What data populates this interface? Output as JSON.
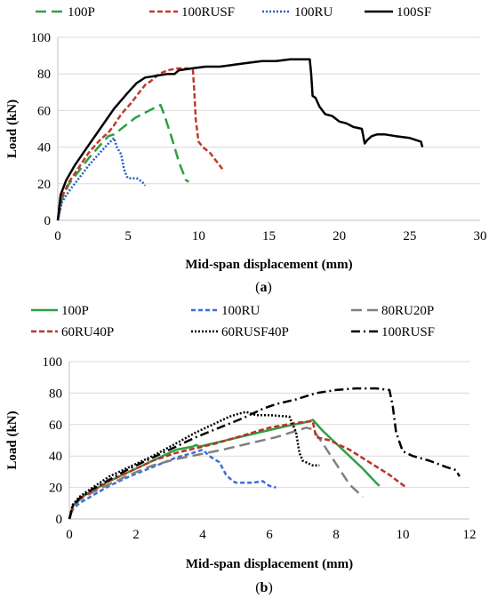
{
  "chart_data": [
    {
      "panel": "a",
      "caption": {
        "open": "(",
        "letter": "a",
        "close": ")"
      },
      "type": "line",
      "xlabel": "Mid-span displacement (mm)",
      "ylabel": "Load (kN)",
      "xlim": [
        0,
        30
      ],
      "ylim": [
        0,
        100
      ],
      "xticks": [
        0,
        5,
        10,
        15,
        20,
        25,
        30
      ],
      "yticks": [
        0,
        20,
        40,
        60,
        80,
        100
      ],
      "grid": "horizontal",
      "legend_position": "top",
      "series": [
        {
          "name": "100P",
          "color": "#2ea043",
          "dash": "long-dash",
          "x": [
            0,
            0.3,
            0.8,
            1.5,
            2.2,
            3.0,
            3.6,
            4.0,
            4.5,
            5.5,
            6.5,
            7.0,
            7.3,
            7.6,
            8.1,
            8.6,
            9.1,
            9.3
          ],
          "y": [
            0,
            12,
            20,
            27,
            34,
            41,
            46,
            47,
            50,
            56,
            60,
            62,
            63,
            57,
            45,
            32,
            22,
            21
          ]
        },
        {
          "name": "100RUSF",
          "color": "#c0392b",
          "dash": "short-dash",
          "x": [
            0,
            0.3,
            0.8,
            1.5,
            2.2,
            3.0,
            3.6,
            4.0,
            4.5,
            5.2,
            5.8,
            6.2,
            6.6,
            7.2,
            7.8,
            8.5,
            9.2,
            9.6,
            9.7,
            9.8,
            10.0,
            10.3,
            10.8,
            11.3,
            11.7
          ],
          "y": [
            0,
            13,
            21,
            29,
            37,
            44,
            48,
            52,
            58,
            64,
            70,
            74,
            76,
            80,
            82,
            83,
            83,
            82,
            70,
            55,
            43,
            40,
            37,
            32,
            28
          ]
        },
        {
          "name": "100RU",
          "color": "#1f5fbf",
          "dash": "dotted",
          "x": [
            0,
            0.3,
            0.8,
            1.5,
            2.2,
            3.0,
            3.6,
            4.0,
            4.2,
            4.5,
            4.7,
            4.9,
            5.0,
            5.6,
            6.0,
            6.2
          ],
          "y": [
            0,
            10,
            16,
            23,
            30,
            37,
            42,
            45,
            40,
            36,
            28,
            24,
            23,
            23,
            21,
            19
          ]
        },
        {
          "name": "100SF",
          "color": "#000000",
          "dash": "solid",
          "x": [
            0,
            0.2,
            0.6,
            1.2,
            2.0,
            3.0,
            4.0,
            5.0,
            5.6,
            6.2,
            7.0,
            7.8,
            8.3,
            8.6,
            9.5,
            10.5,
            11.5,
            12.5,
            13.5,
            14.5,
            15.5,
            16.5,
            17.5,
            17.9,
            18.0,
            18.1,
            18.3,
            18.6,
            19.0,
            19.5,
            20.0,
            20.5,
            21.0,
            21.6,
            21.8,
            22.0,
            22.3,
            22.7,
            23.2,
            24.0,
            25.0,
            25.8,
            25.9
          ],
          "y": [
            0,
            14,
            22,
            30,
            39,
            50,
            61,
            70,
            75,
            78,
            79,
            80,
            80,
            82,
            83,
            84,
            84,
            85,
            86,
            87,
            87,
            88,
            88,
            88,
            80,
            68,
            67,
            62,
            58,
            57,
            54,
            53,
            51,
            50,
            42,
            44,
            46,
            47,
            47,
            46,
            45,
            43,
            40
          ]
        }
      ]
    },
    {
      "panel": "b",
      "caption": {
        "open": "(",
        "letter": "b",
        "close": ")"
      },
      "type": "line",
      "xlabel": "Mid-span displacement (mm)",
      "ylabel": "Load (kN)",
      "xlim": [
        0,
        12
      ],
      "ylim": [
        0,
        100
      ],
      "xticks": [
        0,
        2,
        4,
        6,
        8,
        10,
        12
      ],
      "yticks": [
        0,
        20,
        40,
        60,
        80,
        100
      ],
      "grid": "horizontal",
      "legend_position": "top",
      "series": [
        {
          "name": "100P",
          "color": "#2ea043",
          "dash": "solid",
          "x": [
            0,
            0.1,
            0.3,
            0.7,
            1.2,
            1.8,
            2.5,
            3.2,
            3.7,
            3.8,
            3.9,
            4.5,
            5.5,
            6.5,
            7.2,
            7.3,
            7.6,
            8.2,
            8.8,
            9.2,
            9.3
          ],
          "y": [
            0,
            8,
            13,
            18,
            24,
            30,
            37,
            44,
            46,
            47,
            46,
            49,
            54,
            59,
            62,
            63,
            56,
            44,
            32,
            23,
            21
          ]
        },
        {
          "name": "100RU",
          "color": "#3a6fd8",
          "dash": "dash",
          "x": [
            0,
            0.1,
            0.3,
            0.7,
            1.2,
            1.8,
            2.5,
            3.2,
            3.7,
            4.0,
            4.2,
            4.5,
            4.7,
            4.9,
            5.0,
            5.5,
            5.8,
            6.0,
            6.2
          ],
          "y": [
            0,
            6,
            10,
            15,
            21,
            27,
            33,
            39,
            42,
            44,
            40,
            36,
            28,
            24,
            23,
            23,
            24,
            21,
            20
          ]
        },
        {
          "name": "80RU20P",
          "color": "#808080",
          "dash": "long-dash",
          "x": [
            0,
            0.1,
            0.3,
            0.7,
            1.2,
            1.8,
            2.5,
            3.2,
            3.9,
            4.6,
            5.4,
            6.2,
            6.8,
            7.1,
            7.3,
            7.6,
            8.0,
            8.4,
            8.8
          ],
          "y": [
            0,
            7,
            12,
            17,
            22,
            28,
            34,
            38,
            41,
            44,
            48,
            52,
            56,
            58,
            57,
            48,
            35,
            22,
            14
          ]
        },
        {
          "name": "60RU40P",
          "color": "#b83227",
          "dash": "short-dash",
          "x": [
            0,
            0.1,
            0.3,
            0.7,
            1.2,
            1.8,
            2.5,
            3.2,
            3.8,
            4.4,
            5.2,
            6.0,
            6.8,
            7.2,
            7.3,
            7.4,
            7.8,
            8.4,
            9.0,
            9.6,
            10.1
          ],
          "y": [
            0,
            8,
            13,
            18,
            24,
            30,
            37,
            42,
            45,
            48,
            53,
            58,
            61,
            62,
            62,
            52,
            50,
            44,
            36,
            28,
            20
          ]
        },
        {
          "name": "60RUSF40P",
          "color": "#000000",
          "dash": "dotted",
          "x": [
            0,
            0.1,
            0.3,
            0.7,
            1.2,
            1.8,
            2.5,
            3.2,
            3.8,
            4.3,
            4.8,
            5.1,
            5.3,
            5.6,
            6.0,
            6.6,
            6.8,
            6.9,
            7.0,
            7.3,
            7.5
          ],
          "y": [
            0,
            9,
            14,
            20,
            27,
            33,
            40,
            48,
            55,
            60,
            65,
            67,
            68,
            66,
            66,
            65,
            55,
            42,
            37,
            34,
            34
          ]
        },
        {
          "name": "100RUSF",
          "color": "#000000",
          "dash": "dash-dot",
          "x": [
            0,
            0.1,
            0.3,
            0.7,
            1.2,
            1.8,
            2.5,
            3.2,
            3.8,
            4.5,
            5.2,
            5.8,
            6.2,
            6.8,
            7.4,
            8.0,
            8.6,
            9.2,
            9.6,
            9.7,
            9.8,
            10.0,
            10.3,
            10.8,
            11.3,
            11.6,
            11.7
          ],
          "y": [
            0,
            8,
            13,
            19,
            25,
            32,
            39,
            46,
            52,
            58,
            64,
            70,
            73,
            76,
            80,
            82,
            83,
            83,
            82,
            72,
            55,
            43,
            40,
            37,
            33,
            31,
            27
          ]
        }
      ]
    }
  ]
}
